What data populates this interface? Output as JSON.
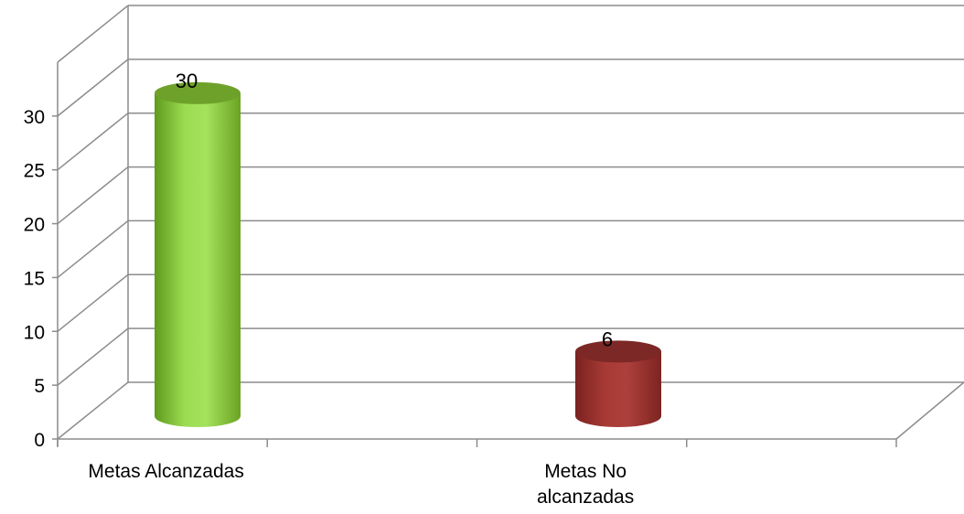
{
  "chart_data": {
    "type": "bar",
    "variant": "3d-cylinder",
    "categories": [
      "Metas Alcanzadas",
      "Metas No alcanzadas"
    ],
    "category_lines": [
      [
        "Metas Alcanzadas"
      ],
      [
        "Metas No",
        "alcanzadas"
      ]
    ],
    "values": [
      30,
      6
    ],
    "data_labels": [
      "30",
      "6"
    ],
    "yticks": [
      "0",
      "5",
      "10",
      "15",
      "20",
      "25",
      "30"
    ],
    "ylim": [
      0,
      35
    ],
    "grid": true,
    "legend": "none",
    "colors": {
      "bar_1": "#8fce3c",
      "bar_2": "#9b3533",
      "grid": "#8c8c8c",
      "text": "#000000"
    }
  }
}
